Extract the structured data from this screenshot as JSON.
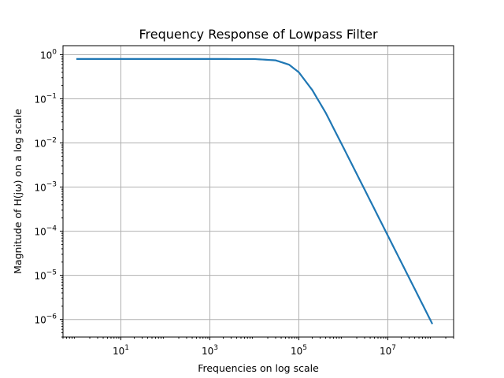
{
  "chart_data": {
    "type": "line",
    "title": "Frequency Response of Lowpass Filter",
    "xlabel": "Frequencies on log scale",
    "ylabel": "Magnitude of H(jω) on a log scale",
    "xscale": "log",
    "yscale": "log",
    "xlim": [
      0.5,
      300000000
    ],
    "ylim": [
      4e-07,
      1.6
    ],
    "grid": true,
    "x_ticks": [
      {
        "value": 10,
        "base": "10",
        "exp": "1"
      },
      {
        "value": 1000,
        "base": "10",
        "exp": "3"
      },
      {
        "value": 100000,
        "base": "10",
        "exp": "5"
      },
      {
        "value": 10000000,
        "base": "10",
        "exp": "7"
      }
    ],
    "y_ticks": [
      {
        "value": 1,
        "base": "10",
        "exp": "0"
      },
      {
        "value": 0.1,
        "base": "10",
        "exp": "−1"
      },
      {
        "value": 0.01,
        "base": "10",
        "exp": "−2"
      },
      {
        "value": 0.001,
        "base": "10",
        "exp": "−3"
      },
      {
        "value": 0.0001,
        "base": "10",
        "exp": "−4"
      },
      {
        "value": 1e-05,
        "base": "10",
        "exp": "−5"
      },
      {
        "value": 1e-06,
        "base": "10",
        "exp": "−6"
      }
    ],
    "series": [
      {
        "color": "#1f77b4",
        "x": [
          1,
          10,
          100,
          1000,
          10000,
          30000,
          60000,
          100000,
          200000,
          400000,
          1000000,
          3000000,
          10000000,
          30000000,
          100000000
        ],
        "y": [
          0.8,
          0.8,
          0.8,
          0.8,
          0.797,
          0.745,
          0.595,
          0.398,
          0.158,
          0.0484,
          0.0079,
          0.00088,
          7.9e-05,
          8.8e-06,
          7.9e-07
        ]
      }
    ]
  }
}
